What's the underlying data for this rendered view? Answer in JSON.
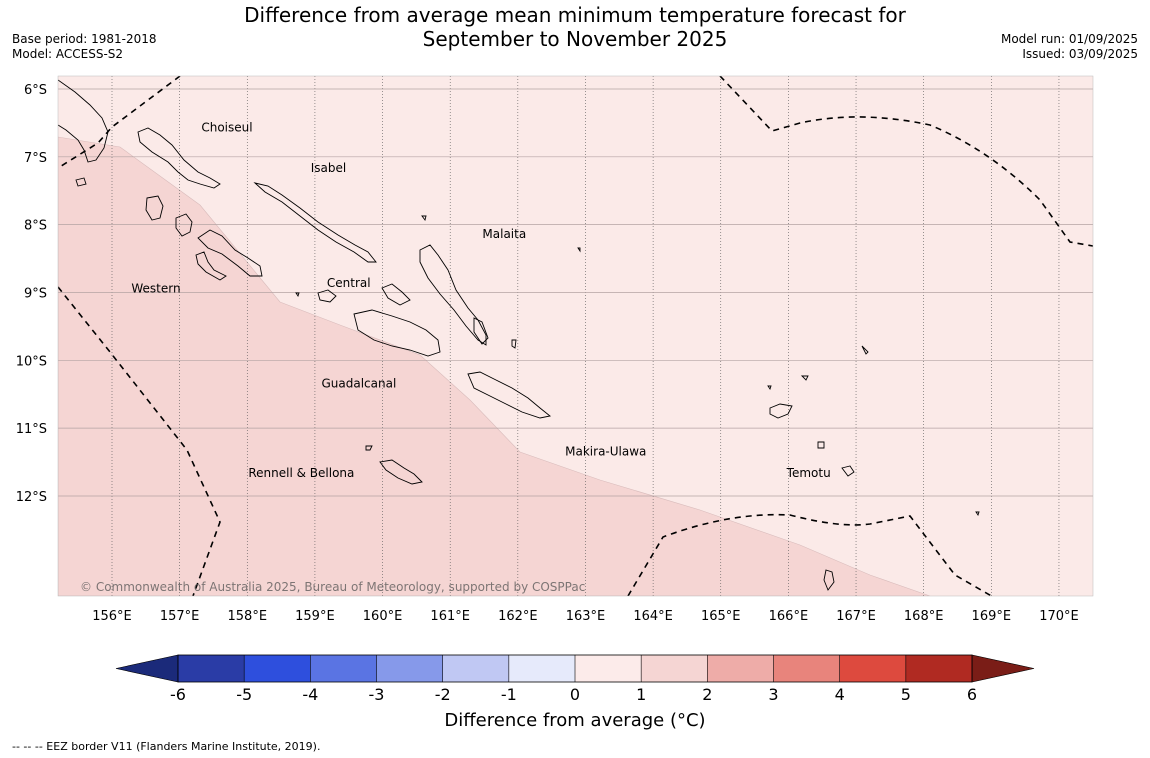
{
  "title": {
    "line1": "Difference from average mean minimum temperature forecast for",
    "line2": "September to November 2025"
  },
  "meta_left": {
    "base_period": "Base period: 1981-2018",
    "model": "Model: ACCESS-S2"
  },
  "meta_right": {
    "model_run": "Model run: 01/09/2025",
    "issued": "Issued: 03/09/2025"
  },
  "map": {
    "lat_labels": [
      "6°S",
      "7°S",
      "8°S",
      "9°S",
      "10°S",
      "11°S",
      "12°S"
    ],
    "lat_values": [
      6,
      7,
      8,
      9,
      10,
      11,
      12
    ],
    "lon_labels": [
      "156°E",
      "157°E",
      "158°E",
      "159°E",
      "160°E",
      "161°E",
      "162°E",
      "163°E",
      "164°E",
      "165°E",
      "166°E",
      "167°E",
      "168°E",
      "169°E",
      "170°E"
    ],
    "lon_values": [
      156,
      157,
      158,
      159,
      160,
      161,
      162,
      163,
      164,
      165,
      166,
      167,
      168,
      169,
      170
    ],
    "provinces": [
      {
        "name": "Choiseul",
        "lon": 157.7,
        "lat": 6.63
      },
      {
        "name": "Isabel",
        "lon": 159.2,
        "lat": 7.22
      },
      {
        "name": "Malaita",
        "lon": 161.8,
        "lat": 8.2
      },
      {
        "name": "Central",
        "lon": 159.5,
        "lat": 8.92
      },
      {
        "name": "Western",
        "lon": 156.65,
        "lat": 9.0
      },
      {
        "name": "Guadalcanal",
        "lon": 159.65,
        "lat": 10.4
      },
      {
        "name": "Makira-Ulawa",
        "lon": 163.3,
        "lat": 11.4
      },
      {
        "name": "Temotu",
        "lon": 166.3,
        "lat": 11.72
      },
      {
        "name": "Rennell & Bellona",
        "lon": 158.8,
        "lat": 11.72
      }
    ],
    "fill_colors": {
      "band_1_2": "#f5d5d3",
      "band_0_1": "#fbeae8"
    },
    "copyright": "© Commonwealth of Australia 2025, Bureau of Meteorology, supported by COSPPac"
  },
  "colorbar": {
    "ticks": [
      "-6",
      "-5",
      "-4",
      "-3",
      "-2",
      "-1",
      "0",
      "1",
      "2",
      "3",
      "4",
      "5",
      "6"
    ],
    "colors": [
      "#2a3ca6",
      "#2e4fdd",
      "#5a74e3",
      "#8699ea",
      "#c0c8f3",
      "#e6eafb",
      "#fcebea",
      "#f5d5d3",
      "#eeaca8",
      "#e8847c",
      "#dd4a3e",
      "#b02a22"
    ],
    "under_color": "#1b2a7a",
    "over_color": "#7a1d17",
    "label": "Difference from average (°C)"
  },
  "footnote": "--  --  -- EEZ border V11 (Flanders Marine Institute, 2019)."
}
